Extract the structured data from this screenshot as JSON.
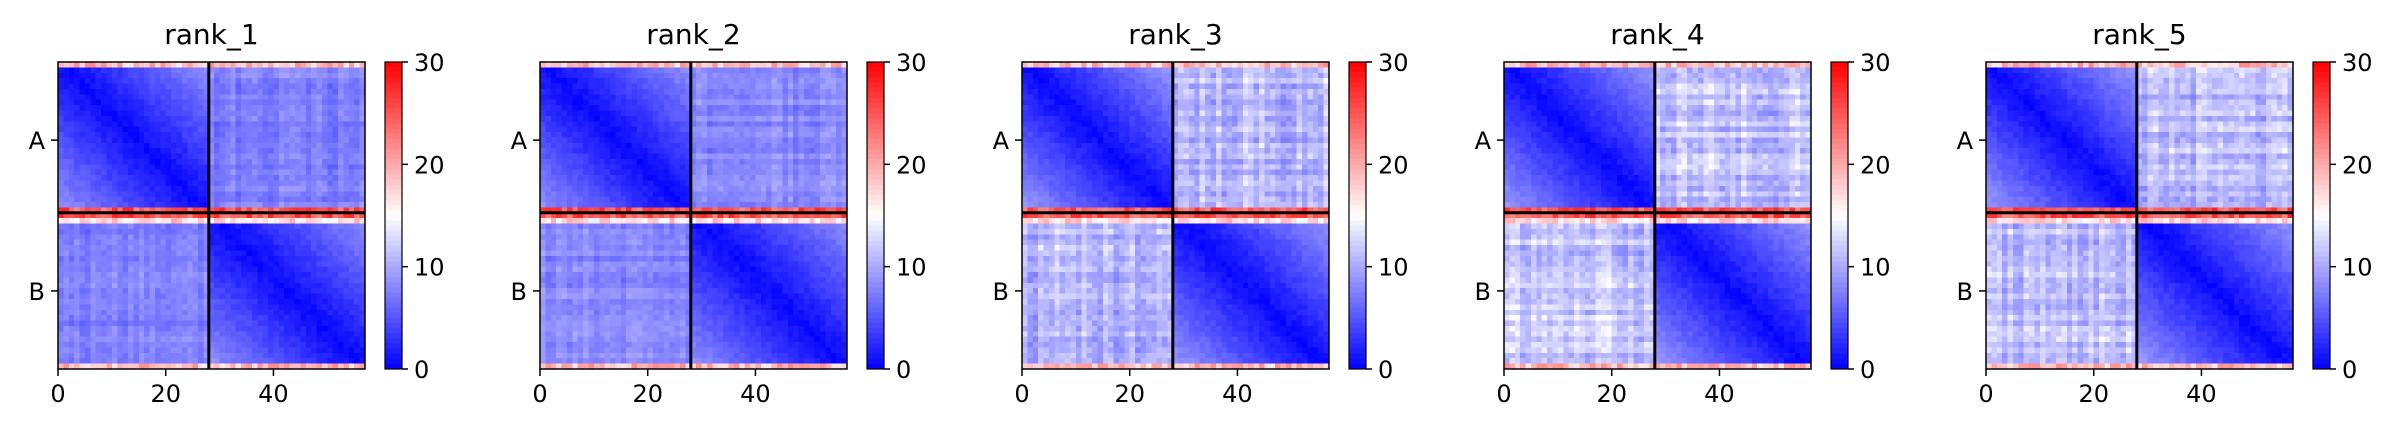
{
  "figure": {
    "colorbar": {
      "ticks": [
        0,
        10,
        20,
        30
      ],
      "range": [
        0,
        30
      ],
      "colormap": "bwr",
      "colors": {
        "low": "#0000ff",
        "mid": "#ffffff",
        "high": "#ff0000"
      }
    }
  },
  "chart_data": [
    {
      "type": "heatmap",
      "title": "rank_1",
      "size": 57,
      "chain_break": 28,
      "xlim": [
        0,
        57
      ],
      "x_ticks": [
        0,
        20,
        40
      ],
      "y_tick_labels": [
        "A",
        "B"
      ],
      "y_tick_values": [
        14,
        42
      ],
      "vmin": 0,
      "vmax": 30,
      "intra_min": 0.5,
      "intra_max": 8.5,
      "inter_level": 7.5,
      "inter_noise": 1.5,
      "edge_rows": [
        27,
        28,
        29
      ],
      "edge_row_value": 28,
      "colorbar_ticks": [
        0,
        10,
        20,
        30
      ]
    },
    {
      "type": "heatmap",
      "title": "rank_2",
      "size": 57,
      "chain_break": 28,
      "xlim": [
        0,
        57
      ],
      "x_ticks": [
        0,
        20,
        40
      ],
      "y_tick_labels": [
        "A",
        "B"
      ],
      "y_tick_values": [
        14,
        42
      ],
      "vmin": 0,
      "vmax": 30,
      "intra_min": 0.5,
      "intra_max": 8.5,
      "inter_level": 8,
      "inter_noise": 1.5,
      "edge_rows": [
        27,
        28,
        29
      ],
      "edge_row_value": 28,
      "colorbar_ticks": [
        0,
        10,
        20,
        30
      ]
    },
    {
      "type": "heatmap",
      "title": "rank_3",
      "size": 57,
      "chain_break": 28,
      "xlim": [
        0,
        57
      ],
      "x_ticks": [
        0,
        20,
        40
      ],
      "y_tick_labels": [
        "A",
        "B"
      ],
      "y_tick_values": [
        14,
        42
      ],
      "vmin": 0,
      "vmax": 30,
      "intra_min": 0.5,
      "intra_max": 9,
      "inter_level": 11,
      "inter_noise": 2.5,
      "edge_rows": [
        27,
        28,
        29
      ],
      "edge_row_value": 28,
      "colorbar_ticks": [
        0,
        10,
        20,
        30
      ]
    },
    {
      "type": "heatmap",
      "title": "rank_4",
      "size": 57,
      "chain_break": 28,
      "xlim": [
        0,
        57
      ],
      "x_ticks": [
        0,
        20,
        40
      ],
      "y_tick_labels": [
        "A",
        "B"
      ],
      "y_tick_values": [
        14,
        42
      ],
      "vmin": 0,
      "vmax": 30,
      "intra_min": 0.5,
      "intra_max": 9,
      "inter_level": 11.5,
      "inter_noise": 2.5,
      "edge_rows": [
        27,
        28,
        29
      ],
      "edge_row_value": 28,
      "colorbar_ticks": [
        0,
        10,
        20,
        30
      ]
    },
    {
      "type": "heatmap",
      "title": "rank_5",
      "size": 57,
      "chain_break": 28,
      "xlim": [
        0,
        57
      ],
      "x_ticks": [
        0,
        20,
        40
      ],
      "y_tick_labels": [
        "A",
        "B"
      ],
      "y_tick_values": [
        14,
        42
      ],
      "vmin": 0,
      "vmax": 30,
      "intra_min": 0.5,
      "intra_max": 9,
      "inter_level": 11,
      "inter_noise": 2.5,
      "edge_rows": [
        27,
        28,
        29
      ],
      "edge_row_value": 28,
      "colorbar_ticks": [
        0,
        10,
        20,
        30
      ]
    }
  ]
}
